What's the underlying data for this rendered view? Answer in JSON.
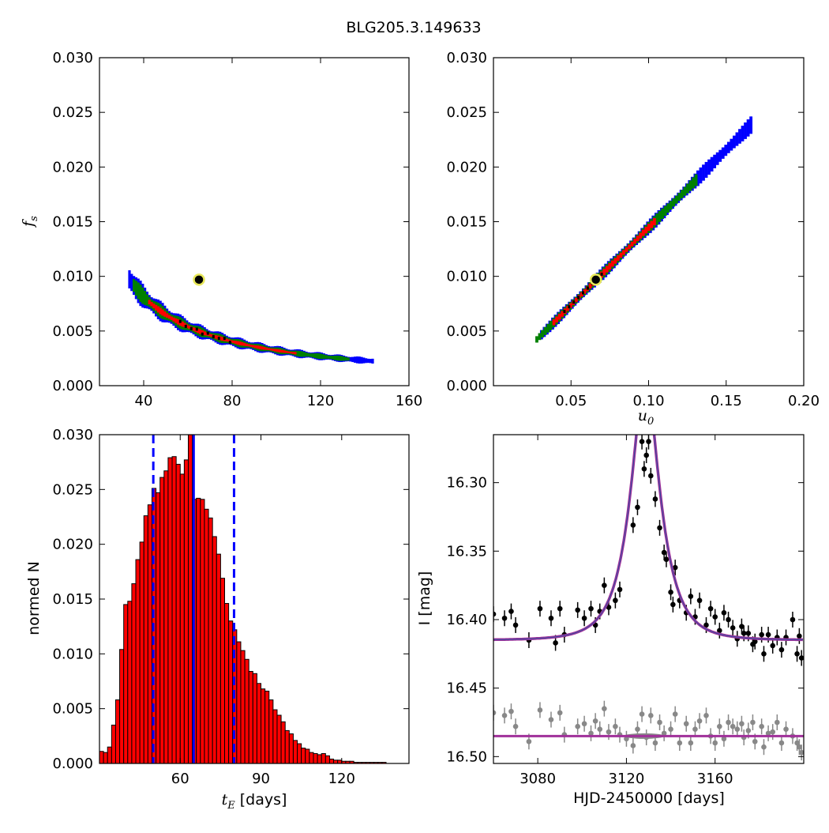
{
  "figure_title": "BLG205.3.149633",
  "colors": {
    "outer_region": "#0000ff",
    "middle_region": "#008000",
    "inner_region": "#ff0000",
    "chain_points": "#000000",
    "best_fit_marker_edge": "#e8e85a",
    "histogram_bars": "#ff0000",
    "percentile_lines": "#0000ff",
    "model_curve": "#a0309a",
    "model_curve_core": "#3050a0",
    "primary_data": "#000000",
    "secondary_data": "#888888"
  },
  "chart_data": [
    {
      "id": "fs_vs_tE",
      "type": "heatmap",
      "xlabel": "",
      "ylabel_symbol": "f",
      "ylabel_sub": "s",
      "xlim": [
        20,
        160
      ],
      "ylim": [
        0.0,
        0.03
      ],
      "xticks": [
        "40",
        "80",
        "120",
        "160"
      ],
      "xtick_values": [
        40,
        80,
        120,
        160
      ],
      "yticks": [
        "0.000",
        "0.005",
        "0.010",
        "0.015",
        "0.020",
        "0.025",
        "0.030"
      ],
      "ytick_values": [
        0,
        0.005,
        0.01,
        0.015,
        0.02,
        0.025,
        0.03
      ],
      "best_fit": {
        "x": 65,
        "y": 0.0097
      },
      "regions": {
        "outer_tE_range": [
          33,
          143
        ],
        "middle_tE_range": [
          35,
          132
        ],
        "inner_tE_range": [
          42,
          108
        ]
      }
    },
    {
      "id": "fs_vs_u0",
      "type": "heatmap",
      "xlabel_symbol": "u",
      "xlabel_sub": "0",
      "xlim": [
        0.0,
        0.2
      ],
      "ylim": [
        0.0,
        0.03
      ],
      "xticks": [
        "0.05",
        "0.10",
        "0.15",
        "0.20"
      ],
      "xtick_values": [
        0.05,
        0.1,
        0.15,
        0.2
      ],
      "yticks": [
        "0.000",
        "0.005",
        "0.010",
        "0.015",
        "0.020",
        "0.025",
        "0.030"
      ],
      "ytick_values": [
        0,
        0.005,
        0.01,
        0.015,
        0.02,
        0.025,
        0.03
      ],
      "best_fit": {
        "x": 0.066,
        "y": 0.0097
      },
      "regions": {
        "outer_u0_range": [
          0.028,
          0.166
        ],
        "middle_u0_range": [
          0.027,
          0.13
        ],
        "inner_u0_range": [
          0.038,
          0.103
        ]
      }
    },
    {
      "id": "tE_histogram",
      "type": "bar",
      "xlabel_symbol": "t",
      "xlabel_sub": "E",
      "xlabel_unit": "[days]",
      "ylabel": "normed N",
      "xlim": [
        30,
        145
      ],
      "ylim": [
        0.0,
        0.03
      ],
      "xticks": [
        "60",
        "90",
        "120"
      ],
      "xtick_values": [
        60,
        90,
        120
      ],
      "yticks": [
        "0.000",
        "0.005",
        "0.010",
        "0.015",
        "0.020",
        "0.025",
        "0.030"
      ],
      "ytick_values": [
        0,
        0.005,
        0.01,
        0.015,
        0.02,
        0.025,
        0.03
      ],
      "bin_start": 30,
      "bin_width": 1.5,
      "values": [
        0.0011,
        0.001,
        0.0015,
        0.0035,
        0.0058,
        0.0104,
        0.0145,
        0.0148,
        0.0164,
        0.0186,
        0.0202,
        0.0226,
        0.0236,
        0.0251,
        0.0247,
        0.0261,
        0.0267,
        0.0279,
        0.028,
        0.0273,
        0.0264,
        0.0277,
        0.03,
        0.0241,
        0.0242,
        0.0241,
        0.0232,
        0.0224,
        0.0207,
        0.0191,
        0.0169,
        0.0146,
        0.013,
        0.0122,
        0.0111,
        0.0103,
        0.0095,
        0.0084,
        0.0082,
        0.0073,
        0.0068,
        0.0066,
        0.0058,
        0.0049,
        0.0044,
        0.0038,
        0.003,
        0.0027,
        0.0021,
        0.0018,
        0.0014,
        0.0013,
        0.001,
        0.0009,
        0.0008,
        0.0009,
        0.0007,
        0.0004,
        0.0003,
        0.0003,
        0.0002,
        0.0002,
        0.0002,
        0.0001,
        0.0001,
        0.0001,
        0.0001,
        0.0001,
        0.0001,
        0.0001,
        0.0001,
        0.0,
        0.0,
        0.0,
        0.0,
        0.0,
        0.0
      ],
      "median": 65,
      "percentile_lines": [
        50,
        80
      ]
    },
    {
      "id": "light_curve",
      "type": "scatter",
      "xlabel": "HJD-2450000 [days]",
      "ylabel": "I [mag]",
      "xlim": [
        3060,
        3200
      ],
      "ylim": [
        16.505,
        16.265
      ],
      "xticks": [
        "3080",
        "3120",
        "3160"
      ],
      "xtick_values": [
        3080,
        3120,
        3160
      ],
      "yticks": [
        "16.30",
        "16.35",
        "16.40",
        "16.45",
        "16.50"
      ],
      "ytick_values": [
        16.3,
        16.35,
        16.4,
        16.45,
        16.5
      ],
      "model": {
        "t0": 3128.5,
        "tE": 65,
        "u0": 0.066,
        "fs": 0.0097,
        "baseline_mag": 16.415
      },
      "residual_offset_mag": 16.485,
      "primary": [
        {
          "x": 3060,
          "y": 16.396
        },
        {
          "x": 3065,
          "y": 16.399
        },
        {
          "x": 3068,
          "y": 16.394
        },
        {
          "x": 3070,
          "y": 16.404
        },
        {
          "x": 3076,
          "y": 16.415
        },
        {
          "x": 3081,
          "y": 16.392
        },
        {
          "x": 3086,
          "y": 16.399
        },
        {
          "x": 3088,
          "y": 16.417
        },
        {
          "x": 3090,
          "y": 16.392
        },
        {
          "x": 3092,
          "y": 16.411
        },
        {
          "x": 3098,
          "y": 16.393
        },
        {
          "x": 3101,
          "y": 16.399
        },
        {
          "x": 3104,
          "y": 16.392
        },
        {
          "x": 3106,
          "y": 16.404
        },
        {
          "x": 3108,
          "y": 16.394
        },
        {
          "x": 3110,
          "y": 16.375
        },
        {
          "x": 3112,
          "y": 16.391
        },
        {
          "x": 3115,
          "y": 16.386
        },
        {
          "x": 3117,
          "y": 16.378
        },
        {
          "x": 3123,
          "y": 16.331
        },
        {
          "x": 3125,
          "y": 16.318
        },
        {
          "x": 3127,
          "y": 16.27
        },
        {
          "x": 3128,
          "y": 16.29
        },
        {
          "x": 3129,
          "y": 16.28
        },
        {
          "x": 3130,
          "y": 16.27
        },
        {
          "x": 3131,
          "y": 16.295
        },
        {
          "x": 3133,
          "y": 16.312
        },
        {
          "x": 3135,
          "y": 16.333
        },
        {
          "x": 3137,
          "y": 16.351
        },
        {
          "x": 3138,
          "y": 16.356
        },
        {
          "x": 3140,
          "y": 16.38
        },
        {
          "x": 3141,
          "y": 16.389
        },
        {
          "x": 3142,
          "y": 16.362
        },
        {
          "x": 3144,
          "y": 16.386
        },
        {
          "x": 3147,
          "y": 16.395
        },
        {
          "x": 3149,
          "y": 16.383
        },
        {
          "x": 3151,
          "y": 16.398
        },
        {
          "x": 3153,
          "y": 16.386
        },
        {
          "x": 3156,
          "y": 16.404
        },
        {
          "x": 3158,
          "y": 16.392
        },
        {
          "x": 3160,
          "y": 16.398
        },
        {
          "x": 3162,
          "y": 16.408
        },
        {
          "x": 3164,
          "y": 16.395
        },
        {
          "x": 3166,
          "y": 16.4
        },
        {
          "x": 3168,
          "y": 16.406
        },
        {
          "x": 3170,
          "y": 16.414
        },
        {
          "x": 3172,
          "y": 16.405
        },
        {
          "x": 3173,
          "y": 16.41
        },
        {
          "x": 3175,
          "y": 16.41
        },
        {
          "x": 3177,
          "y": 16.418
        },
        {
          "x": 3178,
          "y": 16.416
        },
        {
          "x": 3181,
          "y": 16.411
        },
        {
          "x": 3182,
          "y": 16.425
        },
        {
          "x": 3184,
          "y": 16.411
        },
        {
          "x": 3186,
          "y": 16.419
        },
        {
          "x": 3188,
          "y": 16.413
        },
        {
          "x": 3190,
          "y": 16.422
        },
        {
          "x": 3192,
          "y": 16.413
        },
        {
          "x": 3195,
          "y": 16.4
        },
        {
          "x": 3197,
          "y": 16.425
        },
        {
          "x": 3198,
          "y": 16.412
        },
        {
          "x": 3199,
          "y": 16.428
        }
      ],
      "secondary": [
        {
          "x": 3060,
          "y": 16.468
        },
        {
          "x": 3065,
          "y": 16.47
        },
        {
          "x": 3068,
          "y": 16.467
        },
        {
          "x": 3070,
          "y": 16.478
        },
        {
          "x": 3076,
          "y": 16.489
        },
        {
          "x": 3081,
          "y": 16.466
        },
        {
          "x": 3086,
          "y": 16.473
        },
        {
          "x": 3090,
          "y": 16.468
        },
        {
          "x": 3092,
          "y": 16.484
        },
        {
          "x": 3098,
          "y": 16.478
        },
        {
          "x": 3101,
          "y": 16.476
        },
        {
          "x": 3104,
          "y": 16.483
        },
        {
          "x": 3106,
          "y": 16.474
        },
        {
          "x": 3108,
          "y": 16.48
        },
        {
          "x": 3110,
          "y": 16.465
        },
        {
          "x": 3112,
          "y": 16.482
        },
        {
          "x": 3115,
          "y": 16.478
        },
        {
          "x": 3117,
          "y": 16.484
        },
        {
          "x": 3120,
          "y": 16.487
        },
        {
          "x": 3123,
          "y": 16.492
        },
        {
          "x": 3125,
          "y": 16.48
        },
        {
          "x": 3127,
          "y": 16.469
        },
        {
          "x": 3129,
          "y": 16.486
        },
        {
          "x": 3131,
          "y": 16.47
        },
        {
          "x": 3133,
          "y": 16.49
        },
        {
          "x": 3135,
          "y": 16.475
        },
        {
          "x": 3137,
          "y": 16.483
        },
        {
          "x": 3140,
          "y": 16.48
        },
        {
          "x": 3142,
          "y": 16.469
        },
        {
          "x": 3144,
          "y": 16.49
        },
        {
          "x": 3147,
          "y": 16.476
        },
        {
          "x": 3149,
          "y": 16.49
        },
        {
          "x": 3151,
          "y": 16.48
        },
        {
          "x": 3153,
          "y": 16.474
        },
        {
          "x": 3156,
          "y": 16.47
        },
        {
          "x": 3158,
          "y": 16.485
        },
        {
          "x": 3160,
          "y": 16.49
        },
        {
          "x": 3162,
          "y": 16.478
        },
        {
          "x": 3164,
          "y": 16.487
        },
        {
          "x": 3166,
          "y": 16.475
        },
        {
          "x": 3168,
          "y": 16.478
        },
        {
          "x": 3170,
          "y": 16.48
        },
        {
          "x": 3172,
          "y": 16.476
        },
        {
          "x": 3173,
          "y": 16.486
        },
        {
          "x": 3175,
          "y": 16.481
        },
        {
          "x": 3177,
          "y": 16.475
        },
        {
          "x": 3178,
          "y": 16.489
        },
        {
          "x": 3181,
          "y": 16.478
        },
        {
          "x": 3182,
          "y": 16.493
        },
        {
          "x": 3184,
          "y": 16.483
        },
        {
          "x": 3186,
          "y": 16.482
        },
        {
          "x": 3188,
          "y": 16.475
        },
        {
          "x": 3190,
          "y": 16.49
        },
        {
          "x": 3192,
          "y": 16.48
        },
        {
          "x": 3195,
          "y": 16.485
        },
        {
          "x": 3197,
          "y": 16.49
        },
        {
          "x": 3198,
          "y": 16.493
        },
        {
          "x": 3199,
          "y": 16.497
        }
      ]
    }
  ]
}
